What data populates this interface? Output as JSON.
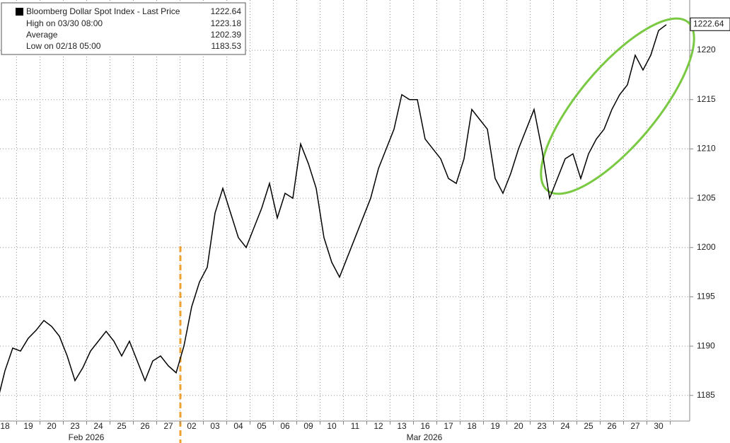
{
  "chart_data": {
    "type": "line",
    "legend": {
      "title": "Bloomberg Dollar Spot Index - Last Price",
      "last": 1222.64,
      "items": [
        {
          "label": "High on 03/30 08:00",
          "value": 1223.18
        },
        {
          "label": "Average",
          "value": 1202.39
        },
        {
          "label": "Low on 02/18 05:00",
          "value": 1183.53
        }
      ]
    },
    "months": [
      "Feb 2026",
      "Mar 2026"
    ],
    "categories": [
      null,
      "18",
      null,
      null,
      "19",
      null,
      null,
      "20",
      null,
      null,
      "23",
      null,
      null,
      "24",
      null,
      null,
      "25",
      null,
      null,
      "26",
      null,
      null,
      "27",
      null,
      null,
      "02",
      null,
      null,
      "03",
      null,
      null,
      "04",
      null,
      null,
      "05",
      null,
      null,
      "06",
      null,
      null,
      "09",
      null,
      null,
      "10",
      null,
      null,
      "11",
      null,
      null,
      "12",
      null,
      null,
      "13",
      null,
      null,
      "16",
      null,
      null,
      "17",
      null,
      null,
      "18",
      null,
      null,
      "19",
      null,
      null,
      "20",
      null,
      null,
      "23",
      null,
      null,
      "24",
      null,
      null,
      "25",
      null,
      null,
      "26",
      null,
      null,
      "27",
      null,
      null,
      "30",
      null
    ],
    "series": [
      {
        "name": "Bloomberg Dollar Spot Index",
        "color": "#000000",
        "values": [
          1184.3,
          1187.5,
          1189.8,
          1189.5,
          1190.8,
          1191.6,
          1192.6,
          1192.0,
          1191.0,
          1189.0,
          1186.5,
          1187.8,
          1189.5,
          1190.5,
          1191.5,
          1190.5,
          1189.0,
          1190.5,
          1188.5,
          1186.5,
          1188.5,
          1189.0,
          1188.0,
          1187.3,
          1190.0,
          1194.0,
          1196.5,
          1198.0,
          1203.5,
          1206.0,
          1203.5,
          1201.0,
          1200.0,
          1202.0,
          1204.0,
          1206.5,
          1203.0,
          1205.5,
          1205.0,
          1210.5,
          1208.5,
          1206.0,
          1201.0,
          1198.5,
          1197.0,
          1199.0,
          1201.0,
          1203.0,
          1205.0,
          1208.0,
          1210.0,
          1212.0,
          1215.5,
          1215.0,
          1215.0,
          1211.0,
          1210.0,
          1209.0,
          1207.0,
          1206.5,
          1209.0,
          1214.0,
          1213.0,
          1212.0,
          1207.0,
          1205.5,
          1207.5,
          1210.0,
          1212.0,
          1214.0,
          1210.0,
          1205.0,
          1207.0,
          1209.0,
          1209.5,
          1207.0,
          1209.5,
          1211.0,
          1212.0,
          1214.0,
          1215.5,
          1216.5,
          1219.5,
          1218.0,
          1219.5,
          1222.0,
          1222.6
        ]
      }
    ],
    "ylim": [
      1182.4,
      1225.1
    ],
    "yticks": [
      1185,
      1190,
      1195,
      1200,
      1205,
      1210,
      1215,
      1220
    ],
    "grid": true
  }
}
